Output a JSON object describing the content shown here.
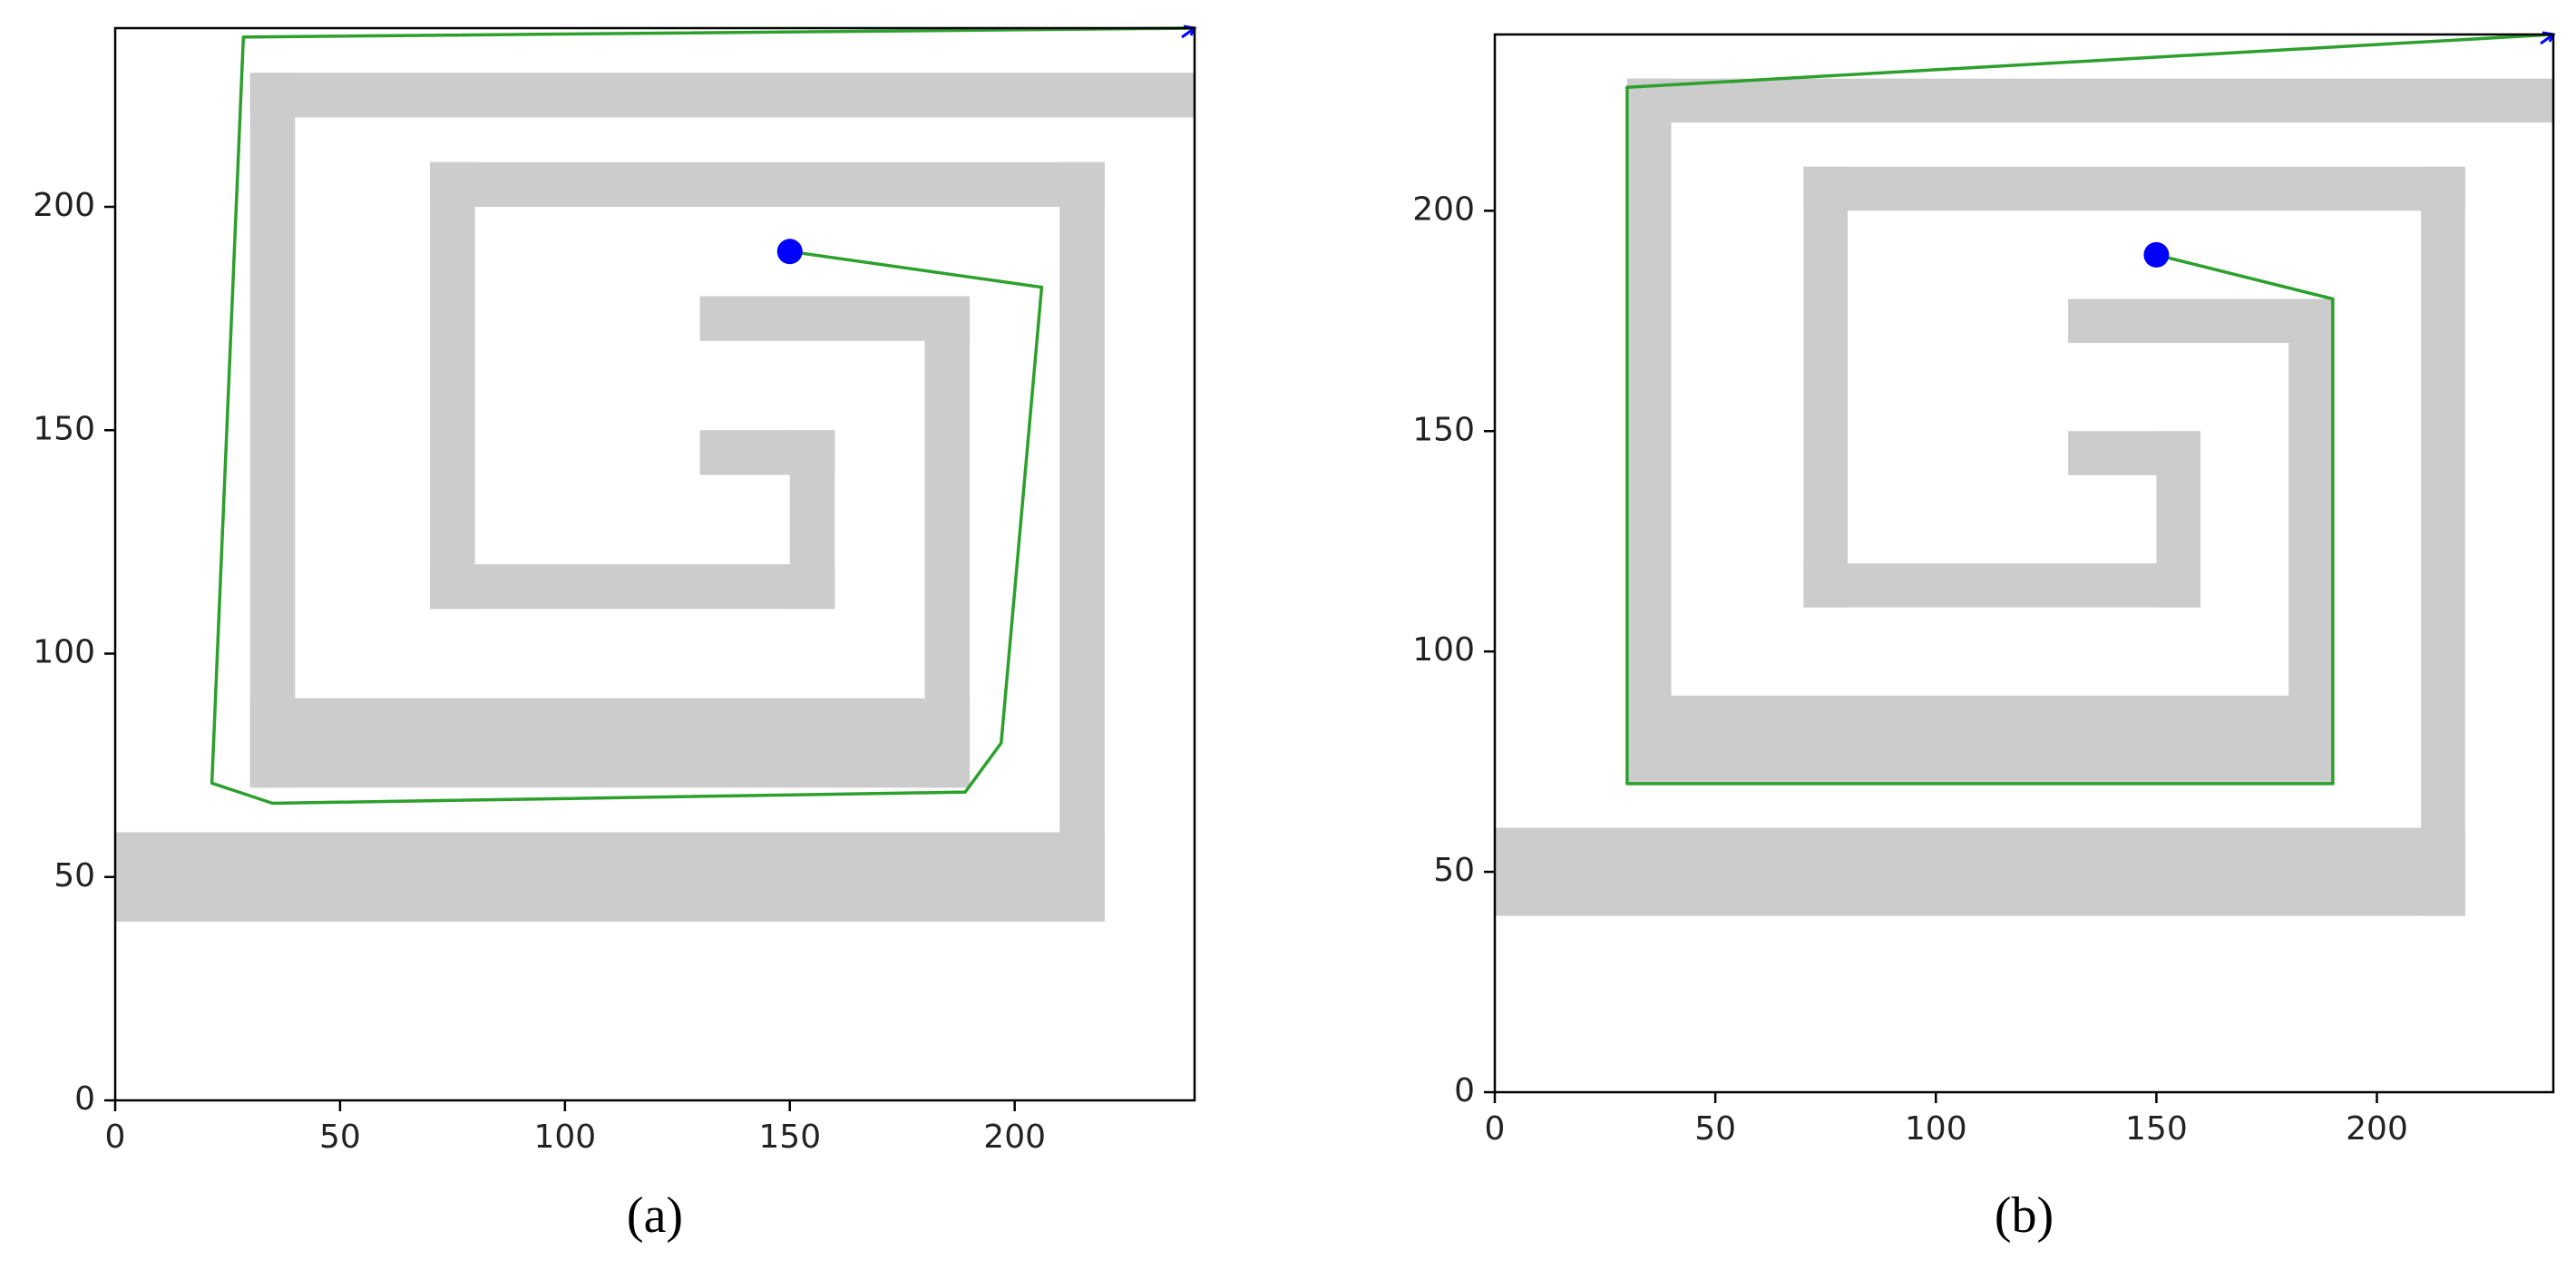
{
  "chart_data": [
    {
      "type": "line",
      "caption": "(a)",
      "xlim": [
        0,
        240
      ],
      "ylim": [
        0,
        240
      ],
      "xticks": [
        0,
        50,
        100,
        150,
        200
      ],
      "yticks": [
        0,
        50,
        100,
        150,
        200
      ],
      "obstacle_color": "#cccccc",
      "obstacles": [
        [
          30,
          220,
          240,
          230
        ],
        [
          30,
          70,
          40,
          230
        ],
        [
          30,
          70,
          190,
          90
        ],
        [
          180,
          70,
          190,
          180
        ],
        [
          130,
          170,
          190,
          180
        ],
        [
          70,
          200,
          220,
          210
        ],
        [
          70,
          110,
          80,
          210
        ],
        [
          70,
          110,
          160,
          120
        ],
        [
          150,
          110,
          160,
          150
        ],
        [
          130,
          140,
          160,
          150
        ],
        [
          210,
          40,
          220,
          210
        ],
        [
          0,
          40,
          220,
          60
        ]
      ],
      "series": [
        {
          "color": "#2ca02c",
          "x": [
            150,
            206,
            197,
            189,
            35,
            21.5,
            28.5,
            240
          ],
          "y": [
            190,
            182,
            80,
            69,
            66.5,
            71,
            238,
            240
          ]
        }
      ],
      "start": {
        "x": 150,
        "y": 190,
        "color": "#0000ff"
      },
      "goal": {
        "x": 240,
        "y": 240,
        "color": "#0000ff"
      }
    },
    {
      "type": "line",
      "caption": "(b)",
      "xlim": [
        0,
        240
      ],
      "ylim": [
        0,
        240
      ],
      "xticks": [
        0,
        50,
        100,
        150,
        200
      ],
      "yticks": [
        0,
        50,
        100,
        150,
        200
      ],
      "obstacle_color": "#cccccc",
      "obstacles": [
        [
          30,
          220,
          240,
          230
        ],
        [
          30,
          70,
          40,
          230
        ],
        [
          30,
          70,
          190,
          90
        ],
        [
          180,
          70,
          190,
          180
        ],
        [
          130,
          170,
          190,
          180
        ],
        [
          70,
          200,
          220,
          210
        ],
        [
          70,
          110,
          80,
          210
        ],
        [
          70,
          110,
          160,
          120
        ],
        [
          150,
          110,
          160,
          150
        ],
        [
          130,
          140,
          160,
          150
        ],
        [
          210,
          40,
          220,
          210
        ],
        [
          0,
          40,
          220,
          60
        ]
      ],
      "series": [
        {
          "color": "#2ca02c",
          "x": [
            150,
            190,
            190,
            30,
            30,
            240
          ],
          "y": [
            190,
            180,
            70,
            70,
            228,
            240
          ]
        }
      ],
      "start": {
        "x": 150,
        "y": 190,
        "color": "#0000ff"
      },
      "goal": {
        "x": 240,
        "y": 240,
        "color": "#0000ff"
      }
    }
  ]
}
